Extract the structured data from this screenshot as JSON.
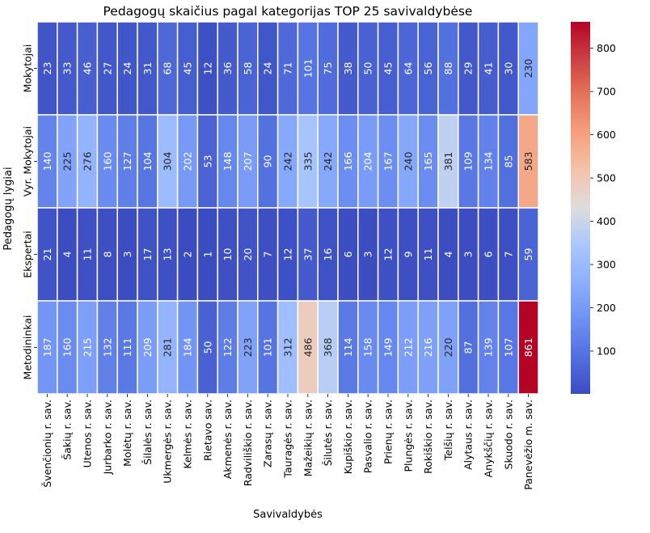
{
  "chart_data": {
    "type": "heatmap",
    "title": "Pedagogų skaičius pagal kategorijas TOP 25 savivaldybėse",
    "xlabel": "Savivaldybės",
    "ylabel": "Pedagogų lygiai",
    "columns": [
      "Švenčionių r. sav.",
      "Šakių r. sav.",
      "Utenos r. sav.",
      "Jurbarko r. sav.",
      "Molėtų r. sav.",
      "Šilalės r. sav.",
      "Ukmergės r. sav.",
      "Kelmės r. sav.",
      "Rietavo sav.",
      "Akmenės r. sav.",
      "Radviliškio r. sav.",
      "Zarasų r. sav.",
      "Tauragės r. sav.",
      "Mažeikių r. sav.",
      "Šilutės r. sav.",
      "Kupiškio r. sav.",
      "Pasvalio r. sav.",
      "Prienų r. sav.",
      "Plungės r. sav.",
      "Rokiškio r. sav.",
      "Telšių r. sav.",
      "Alytaus r. sav.",
      "Anykščių r. sav.",
      "Skuodo r. sav.",
      "Panevėžio m. sav."
    ],
    "rows": [
      "Mokytojai",
      "Vyr. Mokytojai",
      "Ekspertai",
      "Metodininkai"
    ],
    "values": [
      [
        23,
        33,
        46,
        27,
        24,
        31,
        68,
        45,
        12,
        36,
        58,
        24,
        71,
        101,
        75,
        38,
        50,
        45,
        64,
        56,
        88,
        29,
        41,
        30,
        230
      ],
      [
        140,
        225,
        276,
        160,
        127,
        104,
        304,
        202,
        53,
        148,
        207,
        90,
        242,
        335,
        242,
        166,
        204,
        167,
        240,
        165,
        381,
        109,
        134,
        85,
        583
      ],
      [
        21,
        4,
        11,
        8,
        3,
        17,
        13,
        2,
        1,
        10,
        20,
        7,
        12,
        37,
        16,
        6,
        3,
        12,
        9,
        11,
        4,
        3,
        6,
        7,
        59
      ],
      [
        187,
        160,
        215,
        132,
        111,
        209,
        281,
        184,
        50,
        122,
        223,
        101,
        312,
        486,
        368,
        114,
        158,
        149,
        212,
        216,
        220,
        87,
        139,
        107,
        861
      ]
    ],
    "colormap": "coolwarm",
    "vmin": 1,
    "vmax": 861,
    "colorbar_ticks": [
      100,
      200,
      300,
      400,
      500,
      600,
      700,
      800
    ],
    "annotate": true
  }
}
